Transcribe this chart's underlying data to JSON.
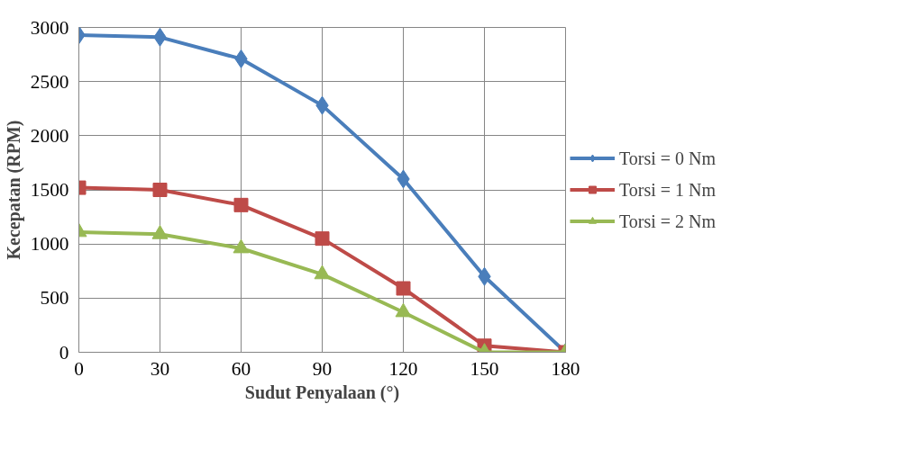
{
  "chart_data": {
    "type": "line",
    "xlabel": "Sudut Penyalaan (°)",
    "ylabel": "Kecepatan (RPM)",
    "x": [
      0,
      30,
      60,
      90,
      120,
      150,
      180
    ],
    "xlim": [
      0,
      180
    ],
    "xticks": [
      0,
      30,
      60,
      90,
      120,
      150,
      180
    ],
    "ylim": [
      0,
      3000
    ],
    "yticks": [
      0,
      500,
      1000,
      1500,
      2000,
      2500,
      3000
    ],
    "grid": true,
    "legend": "right",
    "line_style": "solid",
    "series": [
      {
        "name": "Torsi = 0 Nm",
        "color": "#4a7ebb",
        "marker": "diamond",
        "values": [
          2930,
          2910,
          2710,
          2280,
          1600,
          700,
          0
        ]
      },
      {
        "name": "Torsi = 1 Nm",
        "color": "#be4b48",
        "marker": "square",
        "values": [
          1520,
          1500,
          1360,
          1050,
          590,
          60,
          0
        ]
      },
      {
        "name": "Torsi = 2 Nm",
        "color": "#98b954",
        "marker": "triangle",
        "values": [
          1110,
          1090,
          960,
          720,
          370,
          0,
          0
        ]
      }
    ]
  }
}
